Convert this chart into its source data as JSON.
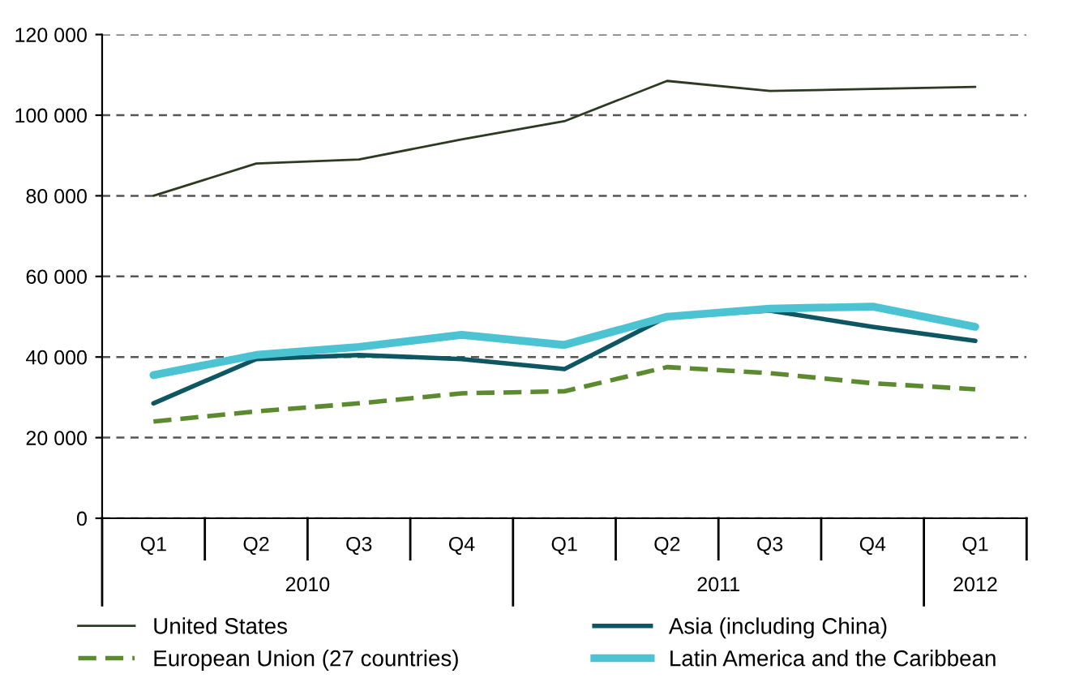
{
  "chart_data": {
    "type": "line",
    "categories": [
      "Q1",
      "Q2",
      "Q3",
      "Q4",
      "Q1",
      "Q2",
      "Q3",
      "Q4",
      "Q1"
    ],
    "annotations": [
      "2010",
      "2011",
      "2012"
    ],
    "ylim": [
      0,
      120000
    ],
    "yticks": [
      {
        "value": 0,
        "label": "0"
      },
      {
        "value": 20000,
        "label": "20 000"
      },
      {
        "value": 40000,
        "label": "40 000"
      },
      {
        "value": 60000,
        "label": "60 000"
      },
      {
        "value": 80000,
        "label": "80 000"
      },
      {
        "value": 100000,
        "label": "100 000"
      },
      {
        "value": 120000,
        "label": "120 000"
      }
    ],
    "grid": "y",
    "legend": "bottom",
    "series": [
      {
        "name": "United States",
        "color": "#2d3a22",
        "values": [
          80000,
          88000,
          89000,
          94000,
          98500,
          108500,
          106000,
          106500,
          107000
        ]
      },
      {
        "name": "Asia (including China)",
        "color": "#0d5662",
        "values": [
          28500,
          39500,
          40500,
          39500,
          37000,
          50000,
          51500,
          47500,
          44000
        ]
      },
      {
        "name": "European Union (27 countries)",
        "color": "#5b8a2f",
        "line_style": "dashed",
        "values": [
          24000,
          26500,
          28500,
          31000,
          31500,
          37500,
          36000,
          33500,
          32000
        ]
      },
      {
        "name": "Latin America and the Caribbean",
        "color": "#4cc3d2",
        "values": [
          35500,
          40500,
          42500,
          45500,
          43000,
          50000,
          52000,
          52500,
          47500
        ]
      }
    ]
  }
}
